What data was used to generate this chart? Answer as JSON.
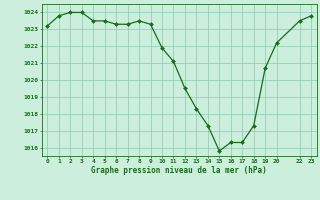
{
  "x": [
    0,
    1,
    2,
    3,
    4,
    5,
    6,
    7,
    8,
    9,
    10,
    11,
    12,
    13,
    14,
    15,
    16,
    17,
    18,
    19,
    20,
    22,
    23
  ],
  "y": [
    1023.2,
    1023.8,
    1024.0,
    1024.0,
    1023.5,
    1023.5,
    1023.3,
    1023.3,
    1023.5,
    1023.3,
    1021.9,
    1021.1,
    1019.5,
    1018.3,
    1017.3,
    1015.8,
    1016.3,
    1016.3,
    1017.3,
    1020.7,
    1022.2,
    1023.5,
    1023.8
  ],
  "yticks": [
    1016,
    1017,
    1018,
    1019,
    1020,
    1021,
    1022,
    1023,
    1024
  ],
  "xticks": [
    0,
    1,
    2,
    3,
    4,
    5,
    6,
    7,
    8,
    9,
    10,
    11,
    12,
    13,
    14,
    15,
    16,
    17,
    18,
    19,
    20,
    22,
    23
  ],
  "xlabel": "Graphe pression niveau de la mer (hPa)",
  "ylim": [
    1015.5,
    1024.5
  ],
  "xlim": [
    -0.5,
    23.5
  ],
  "line_color": "#1a6b1a",
  "marker_color": "#1a6b1a",
  "bg_color": "#cceedd",
  "grid_color": "#88ccaa",
  "xlabel_color": "#1a6b1a",
  "tick_color": "#1a6b1a",
  "axis_color": "#1a6b1a"
}
